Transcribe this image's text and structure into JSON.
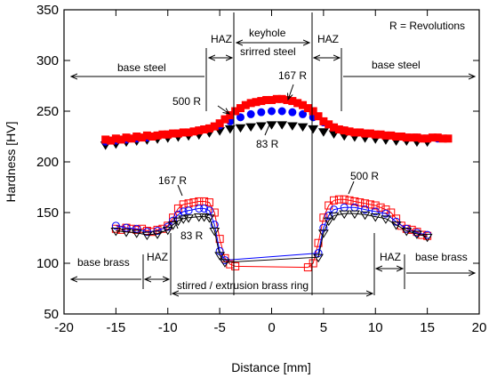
{
  "chart_data": {
    "type": "scatter",
    "xlabel": "Distance [mm]",
    "ylabel": "Hardness [HV]",
    "xlim": [
      -20,
      20
    ],
    "ylim": [
      50,
      350
    ],
    "x_ticks": [
      -20,
      -15,
      -10,
      -5,
      0,
      5,
      10,
      15,
      20
    ],
    "y_ticks": [
      50,
      100,
      150,
      200,
      250,
      300,
      350
    ],
    "grid": false,
    "legend_note": "R = Revolutions",
    "annotations": {
      "haz": "HAZ",
      "keyhole": "keyhole",
      "stirred_steel": "srirred steel",
      "base_steel": "base steel",
      "base_brass": "base brass",
      "stirred_brass_ring": "stirred / extrusion brass ring",
      "r500": "500 R",
      "r167": "167 R",
      "r83": "83 R"
    },
    "series": [
      {
        "name": "167 R",
        "color": "#ff0000",
        "marker": "square-filled",
        "group": "steel",
        "points": [
          [
            -16,
            222
          ],
          [
            -15.5,
            221
          ],
          [
            -15,
            223
          ],
          [
            -14.5,
            222
          ],
          [
            -14,
            224
          ],
          [
            -13.5,
            223
          ],
          [
            -13,
            225
          ],
          [
            -12.5,
            224
          ],
          [
            -12,
            226
          ],
          [
            -11.5,
            225
          ],
          [
            -11,
            226
          ],
          [
            -10.5,
            227
          ],
          [
            -10,
            227
          ],
          [
            -9.5,
            228
          ],
          [
            -9,
            228
          ],
          [
            -8.5,
            229
          ],
          [
            -8,
            229
          ],
          [
            -7.5,
            230
          ],
          [
            -7,
            231
          ],
          [
            -6.5,
            232
          ],
          [
            -6,
            233
          ],
          [
            -5.5,
            235
          ],
          [
            -5,
            238
          ],
          [
            -4.5,
            242
          ],
          [
            -4,
            246
          ],
          [
            -3.5,
            250
          ],
          [
            -3,
            253
          ],
          [
            -2.5,
            256
          ],
          [
            -2,
            258
          ],
          [
            -1.5,
            259
          ],
          [
            -1,
            260
          ],
          [
            -0.5,
            261
          ],
          [
            0,
            261
          ],
          [
            0.5,
            262
          ],
          [
            1,
            262
          ],
          [
            1.5,
            261
          ],
          [
            2,
            260
          ],
          [
            2.5,
            258
          ],
          [
            3,
            256
          ],
          [
            3.5,
            253
          ],
          [
            4,
            250
          ],
          [
            4.5,
            245
          ],
          [
            5,
            240
          ],
          [
            5.5,
            237
          ],
          [
            6,
            234
          ],
          [
            6.5,
            232
          ],
          [
            7,
            231
          ],
          [
            7.5,
            230
          ],
          [
            8,
            229
          ],
          [
            8.5,
            229
          ],
          [
            9,
            228
          ],
          [
            9.5,
            228
          ],
          [
            10,
            227
          ],
          [
            10.5,
            227
          ],
          [
            11,
            226
          ],
          [
            11.5,
            226
          ],
          [
            12,
            225
          ],
          [
            12.5,
            225
          ],
          [
            13,
            224
          ],
          [
            13.5,
            224
          ],
          [
            14,
            224
          ],
          [
            14.5,
            223
          ],
          [
            15,
            223
          ],
          [
            15.5,
            224
          ],
          [
            16,
            224
          ],
          [
            16.5,
            223
          ],
          [
            17,
            223
          ]
        ]
      },
      {
        "name": "500 R",
        "color": "#0000ff",
        "marker": "circle-filled",
        "group": "steel",
        "points": [
          [
            -16,
            220
          ],
          [
            -15,
            221
          ],
          [
            -14,
            222
          ],
          [
            -13,
            223
          ],
          [
            -12,
            224
          ],
          [
            -11,
            226
          ],
          [
            -10,
            227
          ],
          [
            -9,
            228
          ],
          [
            -8,
            229
          ],
          [
            -7,
            231
          ],
          [
            -6,
            233
          ],
          [
            -5,
            236
          ],
          [
            -4,
            240
          ],
          [
            -3,
            244
          ],
          [
            -2,
            247
          ],
          [
            -1,
            249
          ],
          [
            0,
            250
          ],
          [
            1,
            250
          ],
          [
            2,
            249
          ],
          [
            3,
            247
          ],
          [
            4,
            244
          ],
          [
            5,
            239
          ],
          [
            6,
            234
          ],
          [
            7,
            231
          ],
          [
            8,
            229
          ],
          [
            9,
            228
          ],
          [
            10,
            227
          ],
          [
            11,
            226
          ],
          [
            12,
            225
          ],
          [
            13,
            224
          ],
          [
            14,
            224
          ],
          [
            15,
            223
          ],
          [
            16,
            223
          ]
        ]
      },
      {
        "name": "83 R",
        "color": "#000000",
        "marker": "triangle-down-filled",
        "group": "steel",
        "points": [
          [
            -16,
            217
          ],
          [
            -15,
            218
          ],
          [
            -14,
            220
          ],
          [
            -13,
            221
          ],
          [
            -12,
            222
          ],
          [
            -11,
            223
          ],
          [
            -10,
            224
          ],
          [
            -9,
            225
          ],
          [
            -8,
            226
          ],
          [
            -7,
            227
          ],
          [
            -6,
            229
          ],
          [
            -5,
            231
          ],
          [
            -4,
            233
          ],
          [
            -3,
            234
          ],
          [
            -2,
            235
          ],
          [
            -1,
            236
          ],
          [
            0,
            237
          ],
          [
            1,
            237
          ],
          [
            2,
            236
          ],
          [
            3,
            235
          ],
          [
            4,
            233
          ],
          [
            5,
            230
          ],
          [
            6,
            228
          ],
          [
            7,
            226
          ],
          [
            8,
            225
          ],
          [
            9,
            224
          ],
          [
            10,
            223
          ],
          [
            11,
            222
          ],
          [
            12,
            221
          ],
          [
            13,
            221
          ],
          [
            14,
            220
          ],
          [
            15,
            220
          ]
        ]
      },
      {
        "name": "167 R",
        "color": "#ff0000",
        "marker": "square-open",
        "group": "brass",
        "points": [
          [
            -15,
            134
          ],
          [
            -14.5,
            133
          ],
          [
            -14,
            135
          ],
          [
            -13.5,
            134
          ],
          [
            -13,
            133
          ],
          [
            -12.5,
            134
          ],
          [
            -12,
            132
          ],
          [
            -11.5,
            131
          ],
          [
            -11,
            133
          ],
          [
            -10.5,
            134
          ],
          [
            -10,
            137
          ],
          [
            -9.5,
            145
          ],
          [
            -9,
            154
          ],
          [
            -8.5,
            158
          ],
          [
            -8,
            159
          ],
          [
            -7.5,
            160
          ],
          [
            -7,
            161
          ],
          [
            -6.5,
            161
          ],
          [
            -6,
            160
          ],
          [
            -5.5,
            150
          ],
          [
            -5,
            124
          ],
          [
            -4.5,
            105
          ],
          [
            -4,
            99
          ],
          [
            -3.5,
            97
          ],
          [
            3.5,
            96
          ],
          [
            4,
            100
          ],
          [
            4.5,
            120
          ],
          [
            5,
            145
          ],
          [
            5.5,
            157
          ],
          [
            6,
            162
          ],
          [
            6.5,
            163
          ],
          [
            7,
            163
          ],
          [
            7.5,
            162
          ],
          [
            8,
            161
          ],
          [
            8.5,
            160
          ],
          [
            9,
            159
          ],
          [
            9.5,
            158
          ],
          [
            10,
            157
          ],
          [
            10.5,
            155
          ],
          [
            11,
            153
          ],
          [
            11.5,
            150
          ],
          [
            12,
            144
          ],
          [
            12.5,
            137
          ],
          [
            13,
            134
          ],
          [
            13.5,
            133
          ],
          [
            14,
            131
          ],
          [
            14.5,
            128
          ],
          [
            15,
            127
          ]
        ]
      },
      {
        "name": "500 R",
        "color": "#0000ff",
        "marker": "circle-open",
        "group": "brass",
        "points": [
          [
            -15,
            137
          ],
          [
            -14,
            135
          ],
          [
            -13,
            134
          ],
          [
            -12,
            131
          ],
          [
            -11,
            132
          ],
          [
            -10,
            136
          ],
          [
            -9.5,
            142
          ],
          [
            -9,
            148
          ],
          [
            -8.5,
            151
          ],
          [
            -8,
            152
          ],
          [
            -7,
            154
          ],
          [
            -6.5,
            154
          ],
          [
            -6,
            152
          ],
          [
            -5.5,
            138
          ],
          [
            -5,
            112
          ],
          [
            -4.5,
            103
          ],
          [
            4.5,
            110
          ],
          [
            5,
            135
          ],
          [
            5.5,
            147
          ],
          [
            6,
            153
          ],
          [
            7,
            155
          ],
          [
            8,
            155
          ],
          [
            9,
            153
          ],
          [
            10,
            151
          ],
          [
            11,
            149
          ],
          [
            12,
            141
          ],
          [
            13,
            134
          ],
          [
            14,
            130
          ],
          [
            15,
            128
          ]
        ]
      },
      {
        "name": "83 R",
        "color": "#000000",
        "marker": "triangle-down-open",
        "group": "brass",
        "points": [
          [
            -15,
            132
          ],
          [
            -14,
            131
          ],
          [
            -13,
            130
          ],
          [
            -12,
            128
          ],
          [
            -11,
            129
          ],
          [
            -10,
            133
          ],
          [
            -9.5,
            138
          ],
          [
            -9,
            142
          ],
          [
            -8.5,
            144
          ],
          [
            -8,
            145
          ],
          [
            -7,
            146
          ],
          [
            -6.5,
            146
          ],
          [
            -6,
            145
          ],
          [
            -5.5,
            132
          ],
          [
            -5,
            108
          ],
          [
            -4.5,
            101
          ],
          [
            4.5,
            106
          ],
          [
            5,
            130
          ],
          [
            5.5,
            142
          ],
          [
            6,
            147
          ],
          [
            7,
            149
          ],
          [
            8,
            149
          ],
          [
            9,
            148
          ],
          [
            10,
            146
          ],
          [
            11,
            144
          ],
          [
            12,
            138
          ],
          [
            13,
            132
          ],
          [
            14,
            129
          ],
          [
            15,
            126
          ]
        ]
      }
    ]
  }
}
